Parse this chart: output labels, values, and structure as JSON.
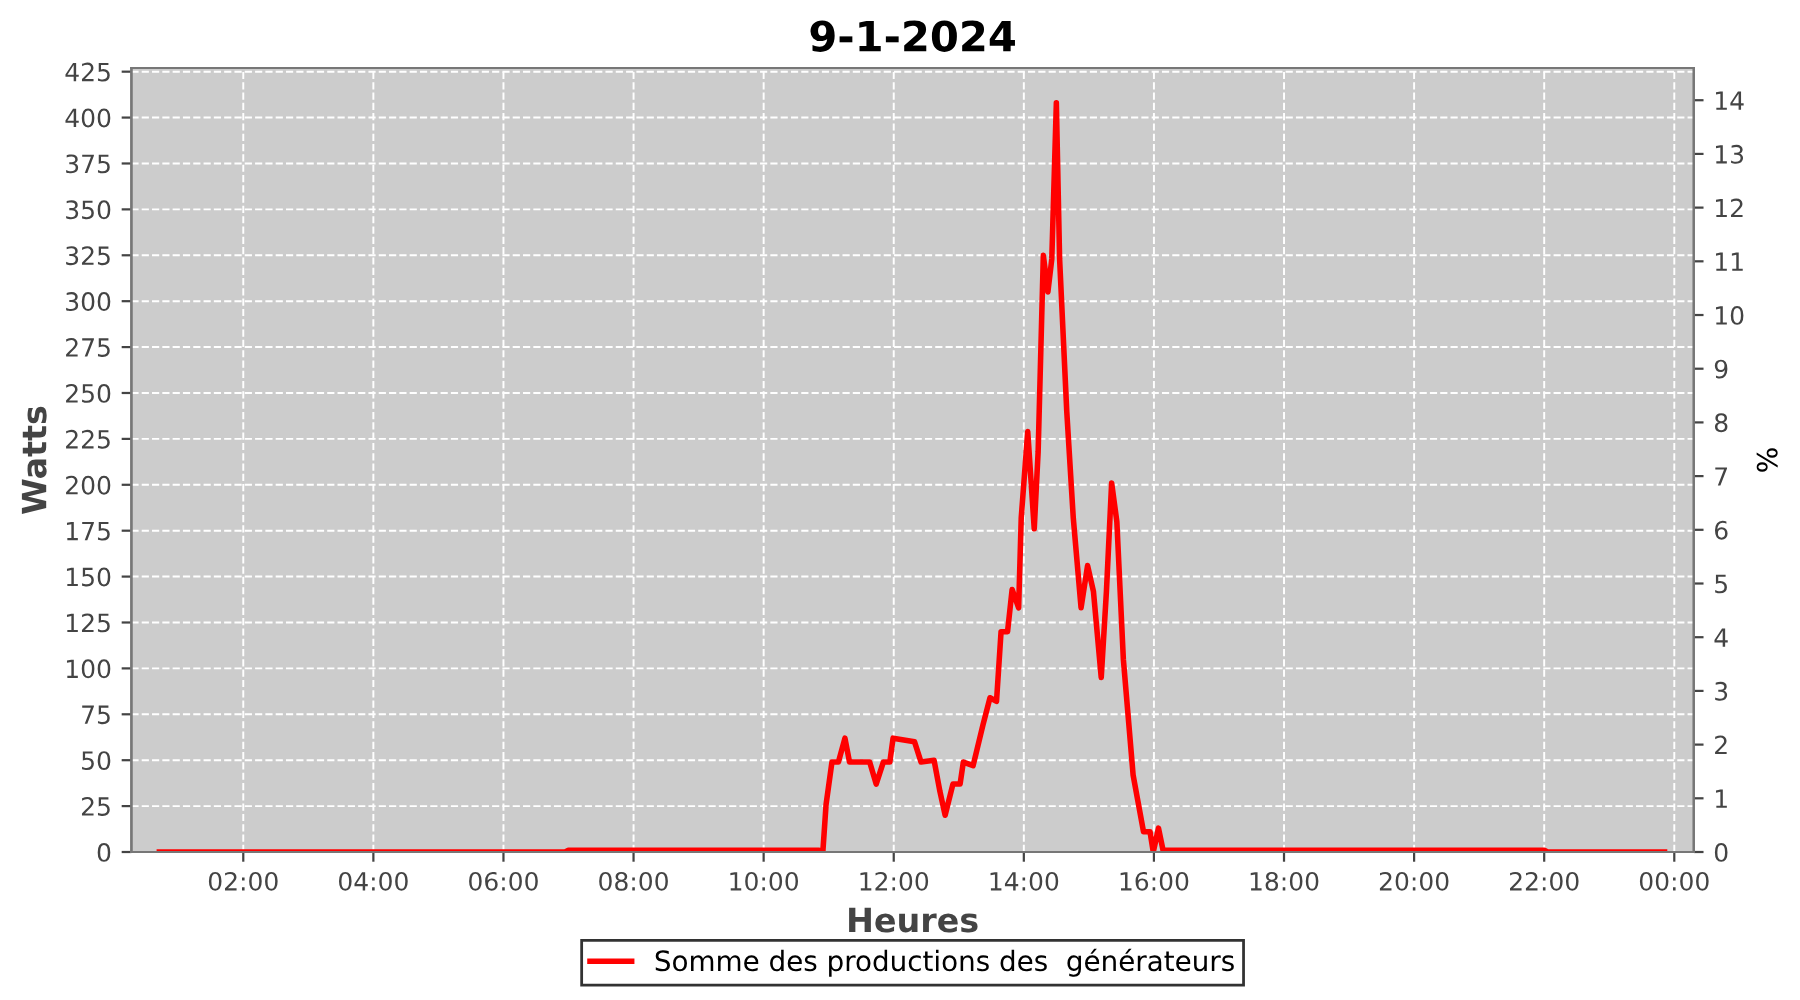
{
  "chart_data": {
    "type": "line",
    "title": "9-1-2024",
    "xlabel": "Heures",
    "ylabel": "Watts",
    "y2label": "%",
    "xlim": [
      0.28,
      24.3
    ],
    "ylim": [
      0,
      427
    ],
    "y2lim": [
      0,
      14.6
    ],
    "xticks": [
      {
        "value": 2,
        "label": "02:00"
      },
      {
        "value": 4,
        "label": "04:00"
      },
      {
        "value": 6,
        "label": "06:00"
      },
      {
        "value": 8,
        "label": "08:00"
      },
      {
        "value": 10,
        "label": "10:00"
      },
      {
        "value": 12,
        "label": "12:00"
      },
      {
        "value": 14,
        "label": "14:00"
      },
      {
        "value": 16,
        "label": "16:00"
      },
      {
        "value": 18,
        "label": "18:00"
      },
      {
        "value": 20,
        "label": "20:00"
      },
      {
        "value": 22,
        "label": "22:00"
      },
      {
        "value": 24,
        "label": "00:00"
      }
    ],
    "yticks": [
      0,
      25,
      50,
      75,
      100,
      125,
      150,
      175,
      200,
      225,
      250,
      275,
      300,
      325,
      350,
      375,
      400,
      425
    ],
    "y2ticks": [
      0,
      1,
      2,
      3,
      4,
      5,
      6,
      7,
      8,
      9,
      10,
      11,
      12,
      13,
      14
    ],
    "grid": true,
    "legend": "bottom",
    "line_style": "solid",
    "marker": "none",
    "series": [
      {
        "name": "Somme des productions des  générateurs",
        "color": "#ff0000",
        "x": [
          0.71,
          6.95,
          7.0,
          10.85,
          10.91,
          10.96,
          11.05,
          11.15,
          11.25,
          11.32,
          11.63,
          11.73,
          11.84,
          11.94,
          11.99,
          12.32,
          12.42,
          12.62,
          12.71,
          12.79,
          12.91,
          13.02,
          13.07,
          13.22,
          13.37,
          13.48,
          13.58,
          13.65,
          13.75,
          13.82,
          13.92,
          13.96,
          14.06,
          14.16,
          14.22,
          14.3,
          14.37,
          14.43,
          14.5,
          14.55,
          14.66,
          14.76,
          14.88,
          14.98,
          15.07,
          15.19,
          15.27,
          15.35,
          15.43,
          15.53,
          15.68,
          15.84,
          15.94,
          15.99,
          16.07,
          16.14,
          22.0,
          22.05,
          23.85
        ],
        "values": [
          0,
          0,
          1,
          1,
          0,
          26,
          49,
          49,
          62,
          49,
          49,
          37,
          49,
          49,
          62,
          60,
          49,
          50,
          33,
          20,
          37,
          37,
          49,
          47,
          69,
          84,
          82,
          120,
          120,
          143,
          133,
          182,
          229,
          176,
          218,
          325,
          305,
          323,
          408,
          323,
          240,
          182,
          133,
          156,
          142,
          95,
          142,
          201,
          180,
          105,
          42,
          11,
          11,
          0,
          13,
          1,
          1,
          0,
          0
        ]
      }
    ]
  }
}
